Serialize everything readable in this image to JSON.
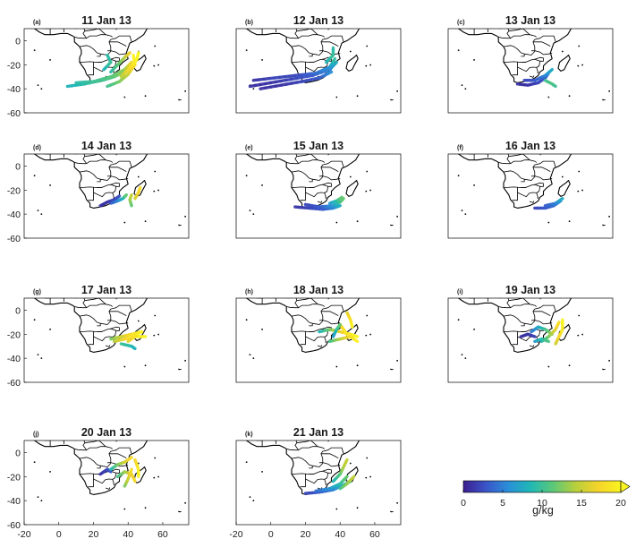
{
  "panels": [
    {
      "label": "(a)",
      "title": "11 Jan 13",
      "traj": [
        {
          "pts": [
            [
              5,
              -38
            ],
            [
              15,
              -36
            ],
            [
              25,
              -33
            ],
            [
              32,
              -30
            ],
            [
              38,
              -26
            ],
            [
              42,
              -22
            ]
          ],
          "v": [
            8,
            9,
            10,
            11,
            14,
            18
          ]
        },
        {
          "pts": [
            [
              10,
              -35
            ],
            [
              20,
              -34
            ],
            [
              30,
              -30
            ],
            [
              38,
              -24
            ],
            [
              42,
              -18
            ]
          ],
          "v": [
            9,
            10,
            11,
            13,
            17
          ]
        },
        {
          "pts": [
            [
              28,
              -38
            ],
            [
              35,
              -34
            ],
            [
              40,
              -28
            ],
            [
              44,
              -20
            ],
            [
              43,
              -12
            ]
          ],
          "v": [
            10,
            12,
            15,
            18,
            20
          ]
        },
        {
          "pts": [
            [
              30,
              -26
            ],
            [
              34,
              -20
            ],
            [
              38,
              -14
            ],
            [
              41,
              -10
            ]
          ],
          "v": [
            9,
            11,
            14,
            17
          ]
        },
        {
          "pts": [
            [
              26,
              -24
            ],
            [
              30,
              -18
            ],
            [
              28,
              -12
            ]
          ],
          "v": [
            8,
            10,
            9
          ]
        },
        {
          "pts": [
            [
              36,
              -30
            ],
            [
              40,
              -24
            ],
            [
              45,
              -16
            ],
            [
              46,
              -10
            ]
          ],
          "v": [
            14,
            17,
            20,
            20
          ]
        }
      ]
    },
    {
      "label": "(b)",
      "title": "12 Jan 13",
      "traj": [
        {
          "pts": [
            [
              -12,
              -38
            ],
            [
              0,
              -35
            ],
            [
              12,
              -32
            ],
            [
              24,
              -29
            ],
            [
              34,
              -24
            ],
            [
              38,
              -18
            ]
          ],
          "v": [
            1,
            1,
            2,
            3,
            5,
            8
          ]
        },
        {
          "pts": [
            [
              -10,
              -33
            ],
            [
              2,
              -31
            ],
            [
              14,
              -29
            ],
            [
              26,
              -27
            ],
            [
              34,
              -22
            ],
            [
              37,
              -15
            ]
          ],
          "v": [
            1,
            2,
            2,
            4,
            6,
            10
          ]
        },
        {
          "pts": [
            [
              -6,
              -40
            ],
            [
              6,
              -37
            ],
            [
              18,
              -34
            ],
            [
              28,
              -31
            ],
            [
              35,
              -26
            ]
          ],
          "v": [
            1,
            1,
            2,
            3,
            6
          ]
        },
        {
          "pts": [
            [
              32,
              -18
            ],
            [
              36,
              -12
            ],
            [
              36,
              -6
            ]
          ],
          "v": [
            8,
            10,
            9
          ]
        }
      ]
    },
    {
      "label": "(c)",
      "title": "13 Jan 13",
      "traj": [
        {
          "pts": [
            [
              20,
              -36
            ],
            [
              26,
              -37
            ],
            [
              32,
              -35
            ],
            [
              36,
              -31
            ],
            [
              38,
              -27
            ]
          ],
          "v": [
            1,
            1,
            2,
            3,
            5
          ]
        },
        {
          "pts": [
            [
              24,
              -33
            ],
            [
              30,
              -33
            ],
            [
              36,
              -29
            ],
            [
              40,
              -24
            ]
          ],
          "v": [
            2,
            3,
            5,
            8
          ]
        },
        {
          "pts": [
            [
              36,
              -33
            ],
            [
              40,
              -36
            ],
            [
              42,
              -38
            ]
          ],
          "v": [
            10,
            11,
            10
          ]
        }
      ]
    },
    {
      "label": "(d)",
      "title": "14 Jan 13",
      "traj": [
        {
          "pts": [
            [
              24,
              -33
            ],
            [
              28,
              -30
            ],
            [
              32,
              -28
            ],
            [
              35,
              -25
            ]
          ],
          "v": [
            1,
            1,
            2,
            3
          ]
        },
        {
          "pts": [
            [
              30,
              -31
            ],
            [
              34,
              -29
            ],
            [
              37,
              -27
            ],
            [
              39,
              -24
            ]
          ],
          "v": [
            3,
            5,
            8,
            12
          ]
        },
        {
          "pts": [
            [
              42,
              -33
            ],
            [
              41,
              -28
            ],
            [
              42,
              -24
            ]
          ],
          "v": [
            11,
            13,
            15
          ]
        },
        {
          "pts": [
            [
              44,
              -27
            ],
            [
              46,
              -22
            ],
            [
              47,
              -18
            ]
          ],
          "v": [
            15,
            17,
            18
          ]
        }
      ]
    },
    {
      "label": "(e)",
      "title": "15 Jan 13",
      "traj": [
        {
          "pts": [
            [
              14,
              -34
            ],
            [
              22,
              -35
            ],
            [
              30,
              -36
            ],
            [
              36,
              -35
            ],
            [
              40,
              -33
            ]
          ],
          "v": [
            1,
            2,
            3,
            5,
            8
          ]
        },
        {
          "pts": [
            [
              20,
              -32
            ],
            [
              28,
              -34
            ],
            [
              36,
              -33
            ],
            [
              40,
              -30
            ],
            [
              42,
              -27
            ]
          ],
          "v": [
            2,
            3,
            6,
            10,
            12
          ]
        },
        {
          "pts": [
            [
              34,
              -31
            ],
            [
              38,
              -29
            ],
            [
              41,
              -26
            ]
          ],
          "v": [
            6,
            9,
            12
          ]
        }
      ]
    },
    {
      "label": "(f)",
      "title": "16 Jan 13",
      "traj": [
        {
          "pts": [
            [
              30,
              -35
            ],
            [
              36,
              -35
            ],
            [
              41,
              -33
            ],
            [
              45,
              -29
            ]
          ],
          "v": [
            2,
            3,
            4,
            6
          ]
        },
        {
          "pts": [
            [
              36,
              -33
            ],
            [
              42,
              -31
            ],
            [
              46,
              -27
            ]
          ],
          "v": [
            3,
            5,
            8
          ]
        }
      ]
    },
    {
      "label": "(g)",
      "title": "17 Jan 13",
      "traj": [
        {
          "pts": [
            [
              30,
              -24
            ],
            [
              36,
              -22
            ],
            [
              42,
              -20
            ],
            [
              48,
              -18
            ]
          ],
          "v": [
            12,
            15,
            18,
            20
          ]
        },
        {
          "pts": [
            [
              32,
              -26
            ],
            [
              38,
              -24
            ],
            [
              44,
              -22
            ],
            [
              50,
              -22
            ]
          ],
          "v": [
            14,
            17,
            19,
            20
          ]
        },
        {
          "pts": [
            [
              36,
              -28
            ],
            [
              42,
              -30
            ],
            [
              44,
              -32
            ]
          ],
          "v": [
            10,
            9,
            8
          ]
        },
        {
          "pts": [
            [
              40,
              -26
            ],
            [
              44,
              -22
            ],
            [
              47,
              -18
            ]
          ],
          "v": [
            16,
            18,
            20
          ]
        }
      ]
    },
    {
      "label": "(h)",
      "title": "18 Jan 13",
      "traj": [
        {
          "pts": [
            [
              28,
              -18
            ],
            [
              34,
              -16
            ],
            [
              40,
              -18
            ],
            [
              46,
              -20
            ],
            [
              50,
              -22
            ]
          ],
          "v": [
            8,
            12,
            16,
            19,
            20
          ]
        },
        {
          "pts": [
            [
              34,
              -26
            ],
            [
              40,
              -24
            ],
            [
              46,
              -22
            ],
            [
              50,
              -26
            ]
          ],
          "v": [
            10,
            14,
            18,
            20
          ]
        },
        {
          "pts": [
            [
              40,
              -12
            ],
            [
              42,
              -16
            ],
            [
              44,
              -20
            ]
          ],
          "v": [
            16,
            18,
            19
          ]
        },
        {
          "pts": [
            [
              44,
              -2
            ],
            [
              46,
              -8
            ],
            [
              47,
              -14
            ]
          ],
          "v": [
            16,
            18,
            20
          ]
        },
        {
          "pts": [
            [
              36,
              -22
            ],
            [
              38,
              -16
            ],
            [
              40,
              -12
            ]
          ],
          "v": [
            6,
            9,
            12
          ]
        }
      ]
    },
    {
      "label": "(i)",
      "title": "19 Jan 13",
      "traj": [
        {
          "pts": [
            [
              22,
              -22
            ],
            [
              26,
              -20
            ],
            [
              30,
              -22
            ]
          ],
          "v": [
            1,
            1,
            2
          ]
        },
        {
          "pts": [
            [
              28,
              -18
            ],
            [
              32,
              -14
            ],
            [
              36,
              -16
            ],
            [
              40,
              -20
            ]
          ],
          "v": [
            4,
            7,
            10,
            13
          ]
        },
        {
          "pts": [
            [
              34,
              -26
            ],
            [
              38,
              -22
            ],
            [
              42,
              -16
            ],
            [
              44,
              -10
            ]
          ],
          "v": [
            8,
            12,
            16,
            18
          ]
        },
        {
          "pts": [
            [
              42,
              -28
            ],
            [
              44,
              -22
            ],
            [
              46,
              -16
            ],
            [
              46,
              -8
            ]
          ],
          "v": [
            15,
            17,
            19,
            20
          ]
        },
        {
          "pts": [
            [
              30,
              -26
            ],
            [
              34,
              -24
            ],
            [
              38,
              -26
            ]
          ],
          "v": [
            6,
            9,
            11
          ]
        }
      ]
    },
    {
      "label": "(j)",
      "title": "20 Jan 13",
      "traj": [
        {
          "pts": [
            [
              24,
              -18
            ],
            [
              28,
              -14
            ],
            [
              30,
              -16
            ]
          ],
          "v": [
            1,
            2,
            3
          ]
        },
        {
          "pts": [
            [
              30,
              -14
            ],
            [
              34,
              -10
            ],
            [
              38,
              -8
            ],
            [
              42,
              -4
            ]
          ],
          "v": [
            8,
            12,
            15,
            18
          ]
        },
        {
          "pts": [
            [
              34,
              -20
            ],
            [
              38,
              -16
            ],
            [
              42,
              -18
            ],
            [
              44,
              -24
            ]
          ],
          "v": [
            10,
            13,
            16,
            18
          ]
        },
        {
          "pts": [
            [
              38,
              -28
            ],
            [
              40,
              -22
            ],
            [
              42,
              -14
            ]
          ],
          "v": [
            12,
            15,
            18
          ]
        },
        {
          "pts": [
            [
              44,
              -6
            ],
            [
              46,
              -14
            ],
            [
              46,
              -20
            ]
          ],
          "v": [
            17,
            19,
            20
          ]
        }
      ]
    },
    {
      "label": "(k)",
      "title": "21 Jan 13",
      "traj": [
        {
          "pts": [
            [
              20,
              -34
            ],
            [
              28,
              -33
            ],
            [
              36,
              -31
            ],
            [
              42,
              -27
            ],
            [
              46,
              -24
            ]
          ],
          "v": [
            2,
            3,
            5,
            8,
            10
          ]
        },
        {
          "pts": [
            [
              26,
              -32
            ],
            [
              34,
              -30
            ],
            [
              40,
              -26
            ],
            [
              44,
              -20
            ]
          ],
          "v": [
            4,
            6,
            9,
            12
          ]
        },
        {
          "pts": [
            [
              36,
              -24
            ],
            [
              40,
              -18
            ],
            [
              42,
              -12
            ],
            [
              44,
              -6
            ]
          ],
          "v": [
            8,
            11,
            14,
            15
          ]
        },
        {
          "pts": [
            [
              40,
              -30
            ],
            [
              44,
              -26
            ],
            [
              48,
              -20
            ]
          ],
          "v": [
            10,
            13,
            15
          ]
        }
      ]
    }
  ],
  "axes": {
    "lon_ticks": [
      "-20",
      "0",
      "20",
      "40",
      "60"
    ],
    "lat_ticks": [
      "0",
      "-20",
      "-40",
      "-60"
    ],
    "lon_range": [
      -20,
      75
    ],
    "lat_range": [
      -60,
      10
    ]
  },
  "colorbar": {
    "label": "g/kg",
    "ticks": [
      "0",
      "5",
      "10",
      "15",
      "20"
    ],
    "range": [
      0,
      20
    ],
    "colors": [
      "#3b1f8f",
      "#3a54c8",
      "#2a8fd8",
      "#20b8b5",
      "#5dc877",
      "#b9cf3c",
      "#f6d42a",
      "#f9f421"
    ]
  }
}
